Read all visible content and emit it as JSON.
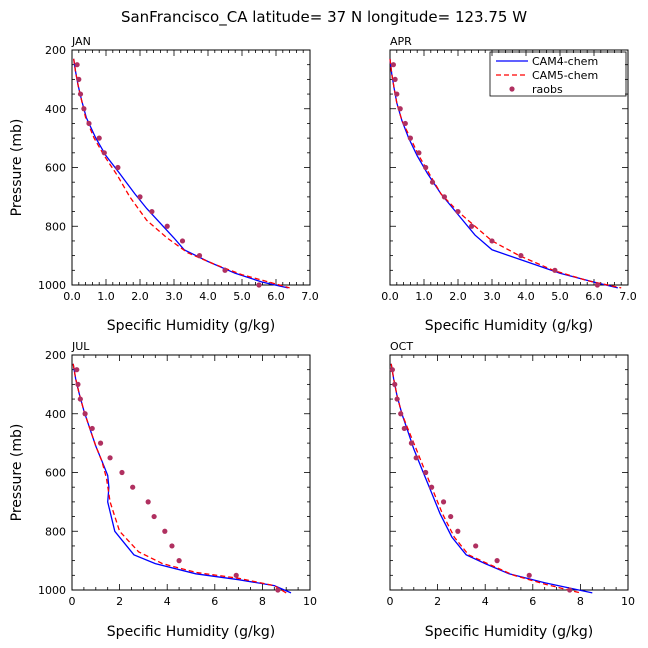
{
  "title": "SanFrancisco_CA  latitude= 37 N longitude= 123.75 W",
  "ylabel": "Pressure (mb)",
  "xlabel": "Specific Humidity (g/kg)",
  "legend": [
    "CAM4-chem",
    "CAM5-chem",
    "raobs"
  ],
  "colors": {
    "cam4": "#0000ff",
    "cam5": "#ff0000",
    "raobs": "#b03060"
  },
  "chart_data": [
    {
      "type": "line",
      "panel": "JAN",
      "xlim": [
        0,
        7
      ],
      "ylim": [
        1000,
        200
      ],
      "xticks": [
        0,
        1,
        2,
        3,
        4,
        5,
        6,
        7
      ],
      "xtick_labels": [
        "0.0",
        "1.0",
        "2.0",
        "3.0",
        "4.0",
        "5.0",
        "6.0",
        "7.0"
      ],
      "yticks": [
        200,
        400,
        600,
        800,
        1000
      ],
      "series": [
        {
          "name": "CAM4-chem",
          "style": "solid",
          "points": [
            [
              0.05,
              230
            ],
            [
              0.1,
              270
            ],
            [
              0.18,
              320
            ],
            [
              0.28,
              370
            ],
            [
              0.42,
              430
            ],
            [
              0.7,
              500
            ],
            [
              1.0,
              560
            ],
            [
              1.4,
              620
            ],
            [
              1.85,
              690
            ],
            [
              2.2,
              740
            ],
            [
              2.6,
              790
            ],
            [
              3.0,
              840
            ],
            [
              3.3,
              880
            ],
            [
              4.0,
              920
            ],
            [
              4.8,
              960
            ],
            [
              5.6,
              990
            ],
            [
              6.35,
              1010
            ]
          ]
        },
        {
          "name": "CAM5-chem",
          "style": "dashed",
          "points": [
            [
              0.05,
              230
            ],
            [
              0.1,
              270
            ],
            [
              0.18,
              320
            ],
            [
              0.28,
              370
            ],
            [
              0.4,
              430
            ],
            [
              0.65,
              500
            ],
            [
              0.95,
              560
            ],
            [
              1.35,
              630
            ],
            [
              1.7,
              700
            ],
            [
              2.2,
              780
            ],
            [
              2.8,
              840
            ],
            [
              3.4,
              890
            ],
            [
              4.2,
              930
            ],
            [
              5.0,
              965
            ],
            [
              5.8,
              990
            ],
            [
              6.4,
              1010
            ]
          ]
        },
        {
          "name": "raobs",
          "style": "points",
          "points": [
            [
              0.15,
              250
            ],
            [
              0.2,
              300
            ],
            [
              0.25,
              350
            ],
            [
              0.35,
              400
            ],
            [
              0.5,
              450
            ],
            [
              0.8,
              500
            ],
            [
              0.95,
              550
            ],
            [
              1.35,
              600
            ],
            [
              2.0,
              700
            ],
            [
              2.35,
              750
            ],
            [
              2.8,
              800
            ],
            [
              3.25,
              850
            ],
            [
              3.75,
              900
            ],
            [
              4.5,
              950
            ],
            [
              5.5,
              1000
            ]
          ]
        }
      ]
    },
    {
      "type": "line",
      "panel": "APR",
      "xlim": [
        0,
        7
      ],
      "ylim": [
        1000,
        200
      ],
      "xticks": [
        0,
        1,
        2,
        3,
        4,
        5,
        6,
        7
      ],
      "xtick_labels": [
        "0.0",
        "1.0",
        "2.0",
        "3.0",
        "4.0",
        "5.0",
        "6.0",
        "7.0"
      ],
      "yticks": [
        200,
        400,
        600,
        800,
        1000
      ],
      "series": [
        {
          "name": "CAM4-chem",
          "style": "solid",
          "points": [
            [
              0.0,
              230
            ],
            [
              0.05,
              280
            ],
            [
              0.12,
              330
            ],
            [
              0.2,
              380
            ],
            [
              0.35,
              440
            ],
            [
              0.55,
              500
            ],
            [
              0.8,
              560
            ],
            [
              1.1,
              620
            ],
            [
              1.5,
              690
            ],
            [
              2.0,
              760
            ],
            [
              2.5,
              830
            ],
            [
              3.0,
              880
            ],
            [
              4.0,
              920
            ],
            [
              5.0,
              960
            ],
            [
              6.0,
              990
            ],
            [
              6.7,
              1010
            ]
          ]
        },
        {
          "name": "CAM5-chem",
          "style": "dashed",
          "points": [
            [
              0.0,
              230
            ],
            [
              0.05,
              280
            ],
            [
              0.12,
              330
            ],
            [
              0.2,
              380
            ],
            [
              0.35,
              440
            ],
            [
              0.6,
              500
            ],
            [
              0.85,
              560
            ],
            [
              1.15,
              620
            ],
            [
              1.5,
              690
            ],
            [
              2.0,
              750
            ],
            [
              2.5,
              800
            ],
            [
              3.0,
              850
            ],
            [
              3.8,
              900
            ],
            [
              4.8,
              950
            ],
            [
              5.8,
              985
            ],
            [
              6.8,
              1010
            ]
          ]
        },
        {
          "name": "raobs",
          "style": "points",
          "points": [
            [
              0.1,
              250
            ],
            [
              0.15,
              300
            ],
            [
              0.2,
              350
            ],
            [
              0.3,
              400
            ],
            [
              0.45,
              450
            ],
            [
              0.6,
              500
            ],
            [
              0.85,
              550
            ],
            [
              1.05,
              600
            ],
            [
              1.25,
              650
            ],
            [
              1.6,
              700
            ],
            [
              2.0,
              750
            ],
            [
              2.4,
              800
            ],
            [
              3.0,
              850
            ],
            [
              3.85,
              900
            ],
            [
              4.85,
              950
            ],
            [
              6.1,
              1000
            ]
          ]
        }
      ]
    },
    {
      "type": "line",
      "panel": "JUL",
      "xlim": [
        0,
        10
      ],
      "ylim": [
        1000,
        200
      ],
      "xticks": [
        0,
        2,
        4,
        6,
        8,
        10
      ],
      "xtick_labels": [
        "0",
        "2",
        "4",
        "6",
        "8",
        "10"
      ],
      "yticks": [
        200,
        400,
        600,
        800,
        1000
      ],
      "series": [
        {
          "name": "CAM4-chem",
          "style": "solid",
          "points": [
            [
              0.05,
              230
            ],
            [
              0.15,
              280
            ],
            [
              0.3,
              330
            ],
            [
              0.5,
              390
            ],
            [
              0.75,
              450
            ],
            [
              1.0,
              510
            ],
            [
              1.25,
              560
            ],
            [
              1.5,
              610
            ],
            [
              1.55,
              650
            ],
            [
              1.5,
              700
            ],
            [
              1.8,
              800
            ],
            [
              2.6,
              880
            ],
            [
              3.5,
              910
            ],
            [
              5.2,
              945
            ],
            [
              7.0,
              965
            ],
            [
              8.5,
              985
            ],
            [
              9.2,
              1010
            ]
          ]
        },
        {
          "name": "CAM5-chem",
          "style": "dashed",
          "points": [
            [
              0.05,
              230
            ],
            [
              0.15,
              280
            ],
            [
              0.3,
              330
            ],
            [
              0.5,
              390
            ],
            [
              0.75,
              450
            ],
            [
              1.0,
              510
            ],
            [
              1.25,
              560
            ],
            [
              1.45,
              620
            ],
            [
              1.6,
              700
            ],
            [
              2.0,
              800
            ],
            [
              2.8,
              870
            ],
            [
              3.8,
              910
            ],
            [
              5.2,
              940
            ],
            [
              7.0,
              960
            ],
            [
              8.5,
              985
            ],
            [
              9.0,
              1010
            ]
          ]
        },
        {
          "name": "raobs",
          "style": "points",
          "points": [
            [
              0.2,
              250
            ],
            [
              0.25,
              300
            ],
            [
              0.35,
              350
            ],
            [
              0.55,
              400
            ],
            [
              0.85,
              450
            ],
            [
              1.2,
              500
            ],
            [
              1.6,
              550
            ],
            [
              2.1,
              600
            ],
            [
              2.55,
              650
            ],
            [
              3.2,
              700
            ],
            [
              3.45,
              750
            ],
            [
              3.9,
              800
            ],
            [
              4.2,
              850
            ],
            [
              4.5,
              900
            ],
            [
              6.9,
              950
            ],
            [
              8.65,
              1000
            ]
          ]
        }
      ]
    },
    {
      "type": "line",
      "panel": "OCT",
      "xlim": [
        0,
        10
      ],
      "ylim": [
        1000,
        200
      ],
      "xticks": [
        0,
        2,
        4,
        6,
        8,
        10
      ],
      "xtick_labels": [
        "0",
        "2",
        "4",
        "6",
        "8",
        "10"
      ],
      "yticks": [
        200,
        400,
        600,
        800,
        1000
      ],
      "series": [
        {
          "name": "CAM4-chem",
          "style": "solid",
          "points": [
            [
              0.05,
              230
            ],
            [
              0.15,
              280
            ],
            [
              0.3,
              340
            ],
            [
              0.5,
              400
            ],
            [
              0.75,
              460
            ],
            [
              1.0,
              520
            ],
            [
              1.35,
              590
            ],
            [
              1.7,
              660
            ],
            [
              2.1,
              740
            ],
            [
              2.6,
              820
            ],
            [
              3.2,
              880
            ],
            [
              4.0,
              910
            ],
            [
              5.0,
              945
            ],
            [
              6.5,
              975
            ],
            [
              8.5,
              1010
            ]
          ]
        },
        {
          "name": "CAM5-chem",
          "style": "dashed",
          "points": [
            [
              0.05,
              230
            ],
            [
              0.15,
              280
            ],
            [
              0.3,
              340
            ],
            [
              0.5,
              400
            ],
            [
              0.8,
              460
            ],
            [
              1.1,
              520
            ],
            [
              1.45,
              590
            ],
            [
              1.8,
              660
            ],
            [
              2.2,
              740
            ],
            [
              2.7,
              820
            ],
            [
              3.3,
              880
            ],
            [
              4.1,
              910
            ],
            [
              5.2,
              950
            ],
            [
              6.5,
              980
            ],
            [
              8.0,
              1010
            ]
          ]
        },
        {
          "name": "raobs",
          "style": "points",
          "points": [
            [
              0.1,
              250
            ],
            [
              0.2,
              300
            ],
            [
              0.3,
              350
            ],
            [
              0.45,
              400
            ],
            [
              0.6,
              450
            ],
            [
              0.9,
              500
            ],
            [
              1.1,
              550
            ],
            [
              1.5,
              600
            ],
            [
              1.75,
              650
            ],
            [
              2.25,
              700
            ],
            [
              2.55,
              750
            ],
            [
              2.85,
              800
            ],
            [
              3.6,
              850
            ],
            [
              4.5,
              900
            ],
            [
              5.85,
              950
            ],
            [
              7.55,
              1000
            ]
          ]
        }
      ]
    }
  ]
}
